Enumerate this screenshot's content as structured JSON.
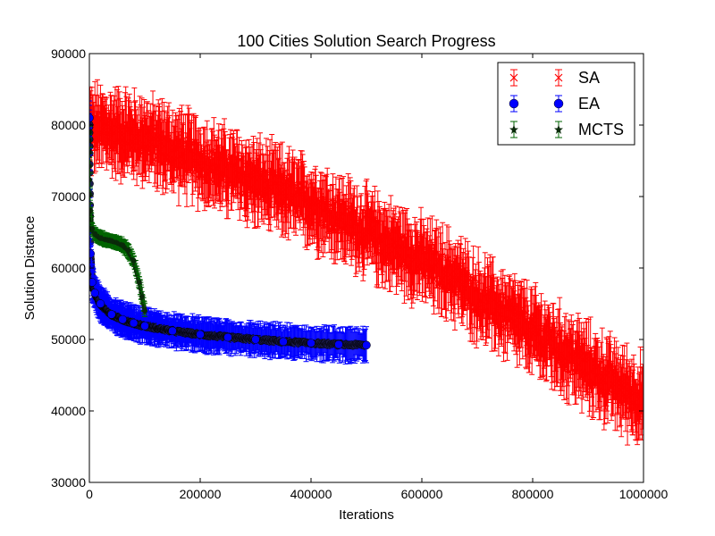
{
  "chart_data": {
    "type": "scatter",
    "title": "100 Cities Solution Search Progress",
    "xlabel": "Iterations",
    "ylabel": "Solution Distance",
    "xlim": [
      0,
      1000000
    ],
    "ylim": [
      30000,
      90000
    ],
    "xticks": [
      0,
      200000,
      400000,
      600000,
      800000,
      1000000
    ],
    "yticks": [
      30000,
      40000,
      50000,
      60000,
      70000,
      80000,
      90000
    ],
    "legend_position": "top-right",
    "grid": false,
    "series": [
      {
        "name": "SA",
        "color": "#ff0000",
        "marker": "x",
        "x": [
          0,
          50000,
          100000,
          150000,
          200000,
          250000,
          300000,
          350000,
          400000,
          450000,
          500000,
          550000,
          600000,
          650000,
          700000,
          750000,
          800000,
          850000,
          900000,
          950000,
          1000000
        ],
        "y": [
          79500,
          79000,
          78000,
          76500,
          75000,
          73500,
          72000,
          70500,
          69000,
          67000,
          65000,
          63000,
          61000,
          59000,
          56000,
          53500,
          51000,
          48500,
          46000,
          43500,
          41500
        ],
        "err": 4000
      },
      {
        "name": "EA",
        "color": "#0000ff",
        "marker": "o",
        "x": [
          0,
          2000,
          5000,
          10000,
          20000,
          40000,
          60000,
          80000,
          100000,
          150000,
          200000,
          250000,
          300000,
          350000,
          400000,
          450000,
          500000
        ],
        "y": [
          81000,
          62000,
          58000,
          56500,
          55000,
          53500,
          52800,
          52300,
          51900,
          51200,
          50700,
          50300,
          50000,
          49700,
          49500,
          49300,
          49200
        ],
        "err": 2000
      },
      {
        "name": "MCTS",
        "color": "#006400",
        "marker": "*",
        "x": [
          0,
          2000,
          5000,
          10000,
          20000,
          40000,
          60000,
          70000,
          80000,
          90000,
          95000,
          100000
        ],
        "y": [
          79000,
          68000,
          65500,
          64800,
          64200,
          63800,
          63200,
          62500,
          61000,
          58000,
          56000,
          54000
        ],
        "err": 800
      }
    ]
  }
}
